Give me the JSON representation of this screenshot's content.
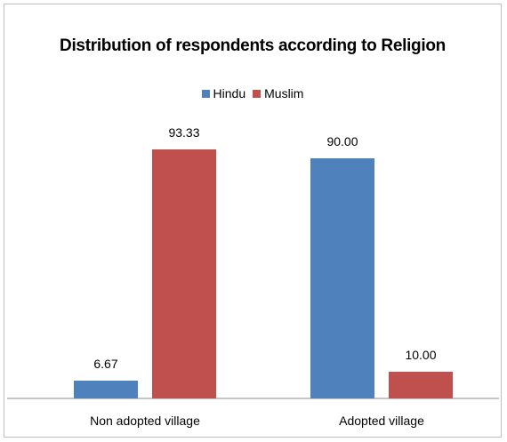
{
  "chart_data": {
    "type": "bar",
    "title": "Distribution of respondents according to Religion",
    "categories": [
      "Non adopted village",
      "Adopted village"
    ],
    "series": [
      {
        "name": "Hindu",
        "values": [
          6.67,
          90.0
        ],
        "labels": [
          "6.67",
          "90.00"
        ],
        "color": "#4f81bd"
      },
      {
        "name": "Muslim",
        "values": [
          93.33,
          10.0
        ],
        "labels": [
          "93.33",
          "10.00"
        ],
        "color": "#c0504d"
      }
    ],
    "ylim": [
      0,
      100
    ],
    "legend_position": "top",
    "grid": false
  }
}
